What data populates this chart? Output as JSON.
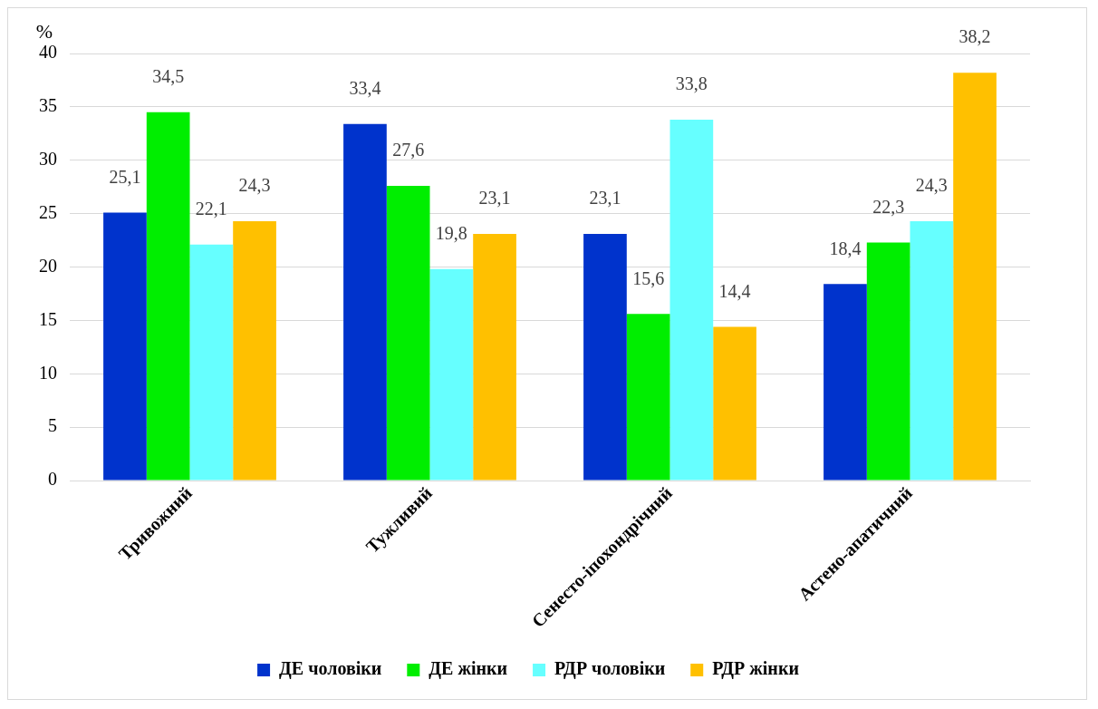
{
  "chart_data": {
    "type": "bar",
    "ylabel": "%",
    "categories": [
      "Тривожний",
      "Тужливий",
      "Сенесто-іпохондрічний",
      "Астено-апатичний"
    ],
    "series": [
      {
        "name": "ДЕ чоловіки",
        "color": "#0033cc",
        "values": [
          25.1,
          33.4,
          23.1,
          18.4
        ],
        "value_labels": [
          "25,1",
          "33,4",
          "23,1",
          "18,4"
        ]
      },
      {
        "name": "ДЕ жінки",
        "color": "#00ee00",
        "values": [
          34.5,
          27.6,
          15.6,
          22.3
        ],
        "value_labels": [
          "34,5",
          "27,6",
          "15,6",
          "22,3"
        ]
      },
      {
        "name": "РДР чоловіки",
        "color": "#66ffff",
        "values": [
          22.1,
          19.8,
          33.8,
          24.3
        ],
        "value_labels": [
          "22,1",
          "19,8",
          "33,8",
          "24,3"
        ]
      },
      {
        "name": "РДР жінки",
        "color": "#ffc000",
        "values": [
          24.3,
          23.1,
          14.4,
          38.2
        ],
        "value_labels": [
          "24,3",
          "23,1",
          "14,4",
          "38,2"
        ]
      }
    ],
    "ylim": [
      0,
      40
    ],
    "yticks": [
      0,
      5,
      10,
      15,
      20,
      25,
      30,
      35,
      40
    ],
    "grid": "y",
    "legend": "bottom"
  }
}
